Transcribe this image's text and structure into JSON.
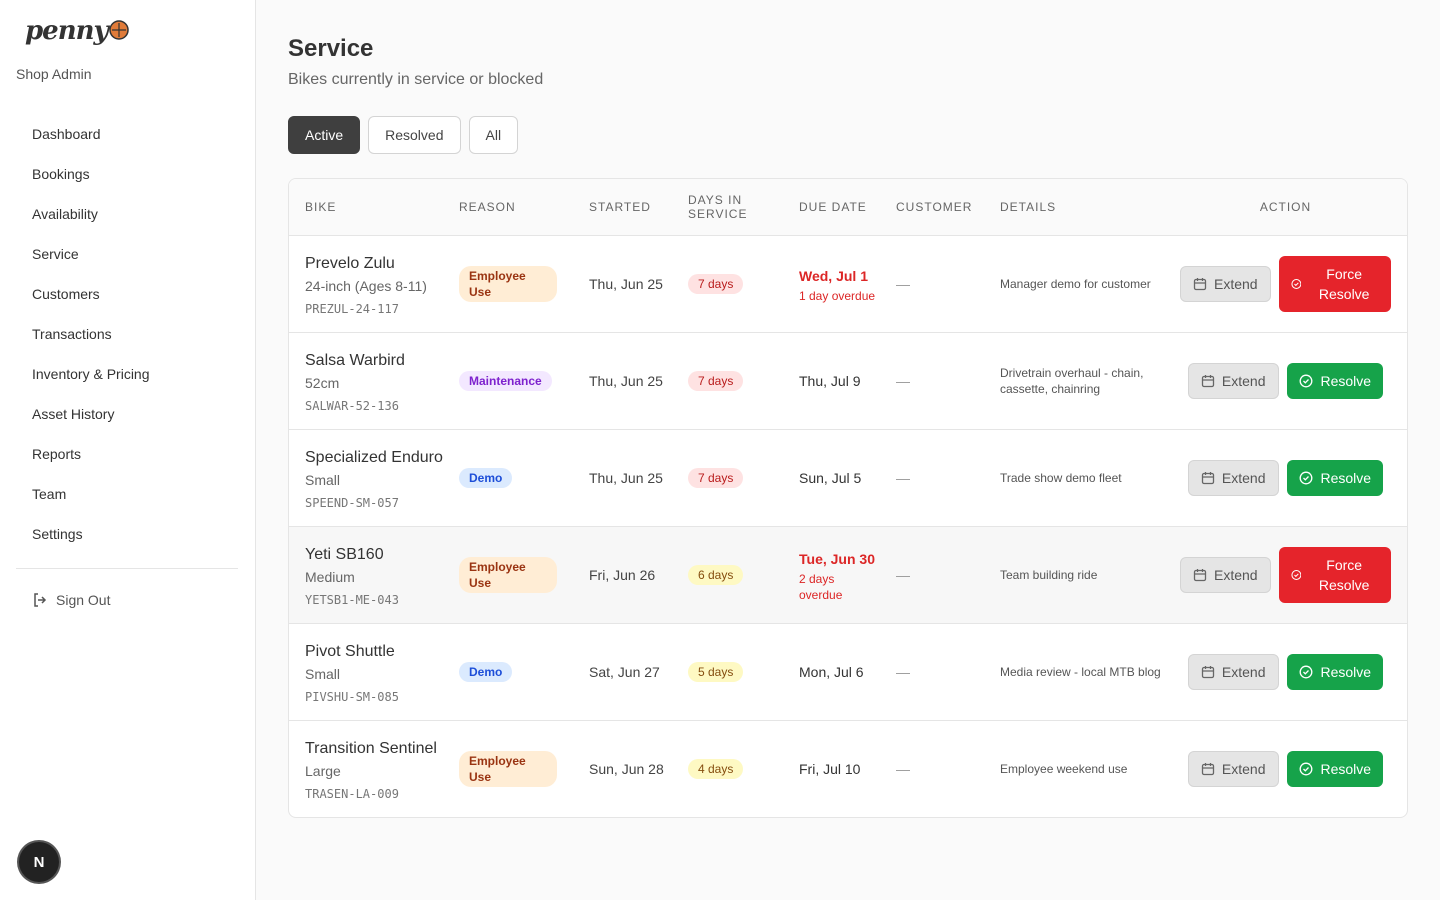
{
  "sidebar": {
    "logo": "penny",
    "subtitle": "Shop Admin",
    "nav": [
      "Dashboard",
      "Bookings",
      "Availability",
      "Service",
      "Customers",
      "Transactions",
      "Inventory & Pricing",
      "Asset History",
      "Reports",
      "Team",
      "Settings"
    ],
    "sign_out": "Sign Out",
    "avatar": "N"
  },
  "header": {
    "title": "Service",
    "subtitle": "Bikes currently in service or blocked"
  },
  "filters": [
    "Active",
    "Resolved",
    "All"
  ],
  "table": {
    "columns": [
      "BIKE",
      "REASON",
      "STARTED",
      "DAYS IN SERVICE",
      "DUE DATE",
      "CUSTOMER",
      "DETAILS",
      "ACTION"
    ],
    "rows": [
      {
        "bike": "Prevelo Zulu",
        "size": "24-inch (Ages 8-11)",
        "code": "PREZUL-24-117",
        "reason": "Employee Use",
        "reason_color": {
          "background": "#ffedd5",
          "text": "#9a3412"
        },
        "started": "Thu, Jun 25",
        "days": "7 days",
        "days_color": {
          "background": "#fee2e2",
          "text": "#b91c1c"
        },
        "due": "Wed, Jul 1",
        "overdue": "1 day overdue",
        "customer": "—",
        "details": "Manager demo for customer",
        "extend": "Extend",
        "action": "Force Resolve",
        "action_color": "#e5242b"
      },
      {
        "bike": "Salsa Warbird",
        "size": "52cm",
        "code": "SALWAR-52-136",
        "reason": "Maintenance",
        "reason_color": {
          "background": "#f3e8ff",
          "text": "#7e22ce"
        },
        "started": "Thu, Jun 25",
        "days": "7 days",
        "days_color": {
          "background": "#fee2e2",
          "text": "#b91c1c"
        },
        "due": "Thu, Jul 9",
        "customer": "—",
        "details": "Drivetrain overhaul - chain, cassette, chainring",
        "extend": "Extend",
        "action": "Resolve",
        "action_color": "#16a34a"
      },
      {
        "bike": "Specialized Enduro",
        "size": "Small",
        "code": "SPEEND-SM-057",
        "reason": "Demo",
        "reason_color": {
          "background": "#dbeafe",
          "text": "#1d4ed8"
        },
        "started": "Thu, Jun 25",
        "days": "7 days",
        "days_color": {
          "background": "#fee2e2",
          "text": "#b91c1c"
        },
        "due": "Sun, Jul 5",
        "customer": "—",
        "details": "Trade show demo fleet",
        "extend": "Extend",
        "action": "Resolve",
        "action_color": "#16a34a"
      },
      {
        "bike": "Yeti SB160",
        "size": "Medium",
        "code": "YETSB1-ME-043",
        "reason": "Employee Use",
        "reason_color": {
          "background": "#ffedd5",
          "text": "#9a3412"
        },
        "started": "Fri, Jun 26",
        "days": "6 days",
        "days_color": {
          "background": "#fef9c3",
          "text": "#854d0e"
        },
        "due": "Tue, Jun 30",
        "overdue": "2 days overdue",
        "customer": "—",
        "details": "Team building ride",
        "extend": "Extend",
        "action": "Force Resolve",
        "action_color": "#e5242b"
      },
      {
        "bike": "Pivot Shuttle",
        "size": "Small",
        "code": "PIVSHU-SM-085",
        "reason": "Demo",
        "reason_color": {
          "background": "#dbeafe",
          "text": "#1d4ed8"
        },
        "started": "Sat, Jun 27",
        "days": "5 days",
        "days_color": {
          "background": "#fef9c3",
          "text": "#854d0e"
        },
        "due": "Mon, Jul 6",
        "customer": "—",
        "details": "Media review - local MTB blog",
        "extend": "Extend",
        "action": "Resolve",
        "action_color": "#16a34a"
      },
      {
        "bike": "Transition Sentinel",
        "size": "Large",
        "code": "TRASEN-LA-009",
        "reason": "Employee Use",
        "reason_color": {
          "background": "#ffedd5",
          "text": "#9a3412"
        },
        "started": "Sun, Jun 28",
        "days": "4 days",
        "days_color": {
          "background": "#fef9c3",
          "text": "#854d0e"
        },
        "due": "Fri, Jul 10",
        "customer": "—",
        "details": "Employee weekend use",
        "extend": "Extend",
        "action": "Resolve",
        "action_color": "#16a34a"
      }
    ]
  }
}
